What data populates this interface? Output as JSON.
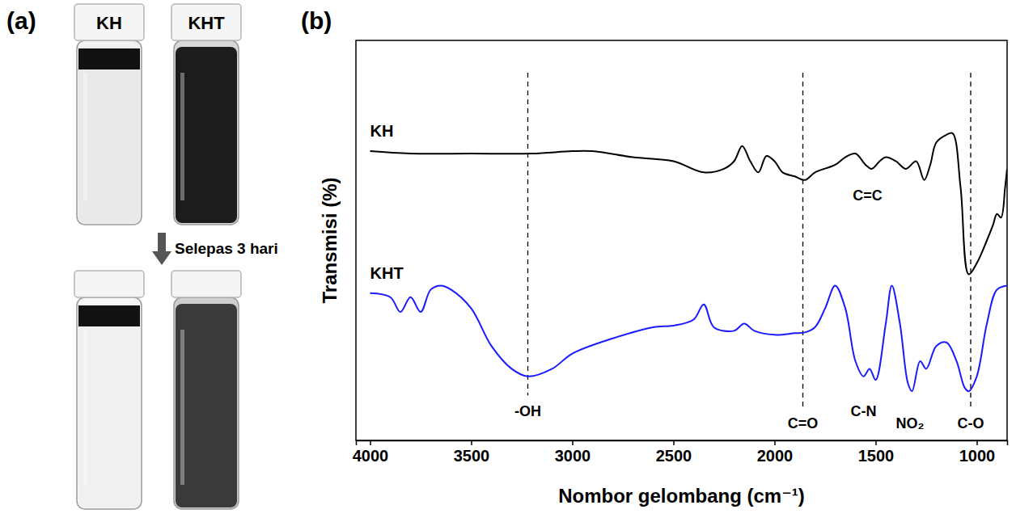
{
  "panel_a": {
    "label": "(a)",
    "vials": [
      "KH",
      "KHT"
    ],
    "arrow_label": "Selepas 3 hari"
  },
  "chart_data": {
    "type": "line",
    "panel_label": "(b)",
    "xlabel": "Nombor gelombang (cm⁻¹)",
    "ylabel": "Transmisi (%)",
    "xlim": [
      4070,
      850
    ],
    "xticks": [
      4000,
      3500,
      3000,
      2500,
      2000,
      1500,
      1000
    ],
    "ylim": [
      0,
      100
    ],
    "tick_labels": "x",
    "grid": false,
    "series": [
      {
        "name": "KH",
        "color": "#000000",
        "x": [
          4000,
          3800,
          3500,
          3200,
          3000,
          2900,
          2700,
          2500,
          2350,
          2250,
          2200,
          2160,
          2120,
          2080,
          2040,
          2000,
          1960,
          1900,
          1850,
          1800,
          1700,
          1650,
          1600,
          1550,
          1520,
          1480,
          1450,
          1400,
          1350,
          1300,
          1260,
          1230,
          1200,
          1150,
          1120,
          1080,
          1040,
          1000,
          950,
          920,
          900,
          880,
          860,
          850
        ],
        "values": [
          72.3,
          71.7,
          71.7,
          71.7,
          72.3,
          72.3,
          70.8,
          69.8,
          67.0,
          67.9,
          69.8,
          73.6,
          69.8,
          67.0,
          71.1,
          69.8,
          67.0,
          66.0,
          65.1,
          67.0,
          68.9,
          70.8,
          71.7,
          68.9,
          67.9,
          69.8,
          70.8,
          69.8,
          67.9,
          69.8,
          65.1,
          68.9,
          74.5,
          76.4,
          76.8,
          63.2,
          41.5,
          44.3,
          50.0,
          53.8,
          56.6,
          55.7,
          63.2,
          67.9
        ]
      },
      {
        "name": "KHT",
        "color": "#1a1aff",
        "x": [
          4000,
          3900,
          3850,
          3800,
          3750,
          3700,
          3650,
          3600,
          3500,
          3400,
          3300,
          3220,
          3100,
          3000,
          2800,
          2600,
          2500,
          2400,
          2350,
          2300,
          2200,
          2150,
          2100,
          2000,
          1900,
          1850,
          1800,
          1750,
          1700,
          1650,
          1600,
          1560,
          1530,
          1500,
          1450,
          1420,
          1380,
          1340,
          1320,
          1280,
          1250,
          1200,
          1150,
          1100,
          1060,
          1040,
          1000,
          950,
          900,
          850
        ],
        "values": [
          36.8,
          35.8,
          32.1,
          35.8,
          32.1,
          37.7,
          38.7,
          37.7,
          33.0,
          23.6,
          17.9,
          16.0,
          17.9,
          21.7,
          25.5,
          28.3,
          28.7,
          30.2,
          34.0,
          28.3,
          27.4,
          29.2,
          27.4,
          26.4,
          26.8,
          27.0,
          28.3,
          33.0,
          38.7,
          33.0,
          19.8,
          16.0,
          17.9,
          15.1,
          29.2,
          38.7,
          29.2,
          14.2,
          12.3,
          19.8,
          17.9,
          23.6,
          24.5,
          19.8,
          13.2,
          12.3,
          16.0,
          29.2,
          37.7,
          38.7
        ]
      }
    ],
    "annotations": [
      {
        "text": "-OH",
        "x": 3220,
        "y": 6,
        "line_style": "dashed"
      },
      {
        "text": "C=O",
        "x": 1860,
        "y": 3,
        "line_style": "dashed"
      },
      {
        "text": "C=C",
        "x": 1540,
        "y": 60
      },
      {
        "text": "C-N",
        "x": 1560,
        "y": 6
      },
      {
        "text": "NO₂",
        "x": 1330,
        "y": 3
      },
      {
        "text": "C-O",
        "x": 1030,
        "y": 3,
        "line_style": "dashed"
      }
    ]
  }
}
